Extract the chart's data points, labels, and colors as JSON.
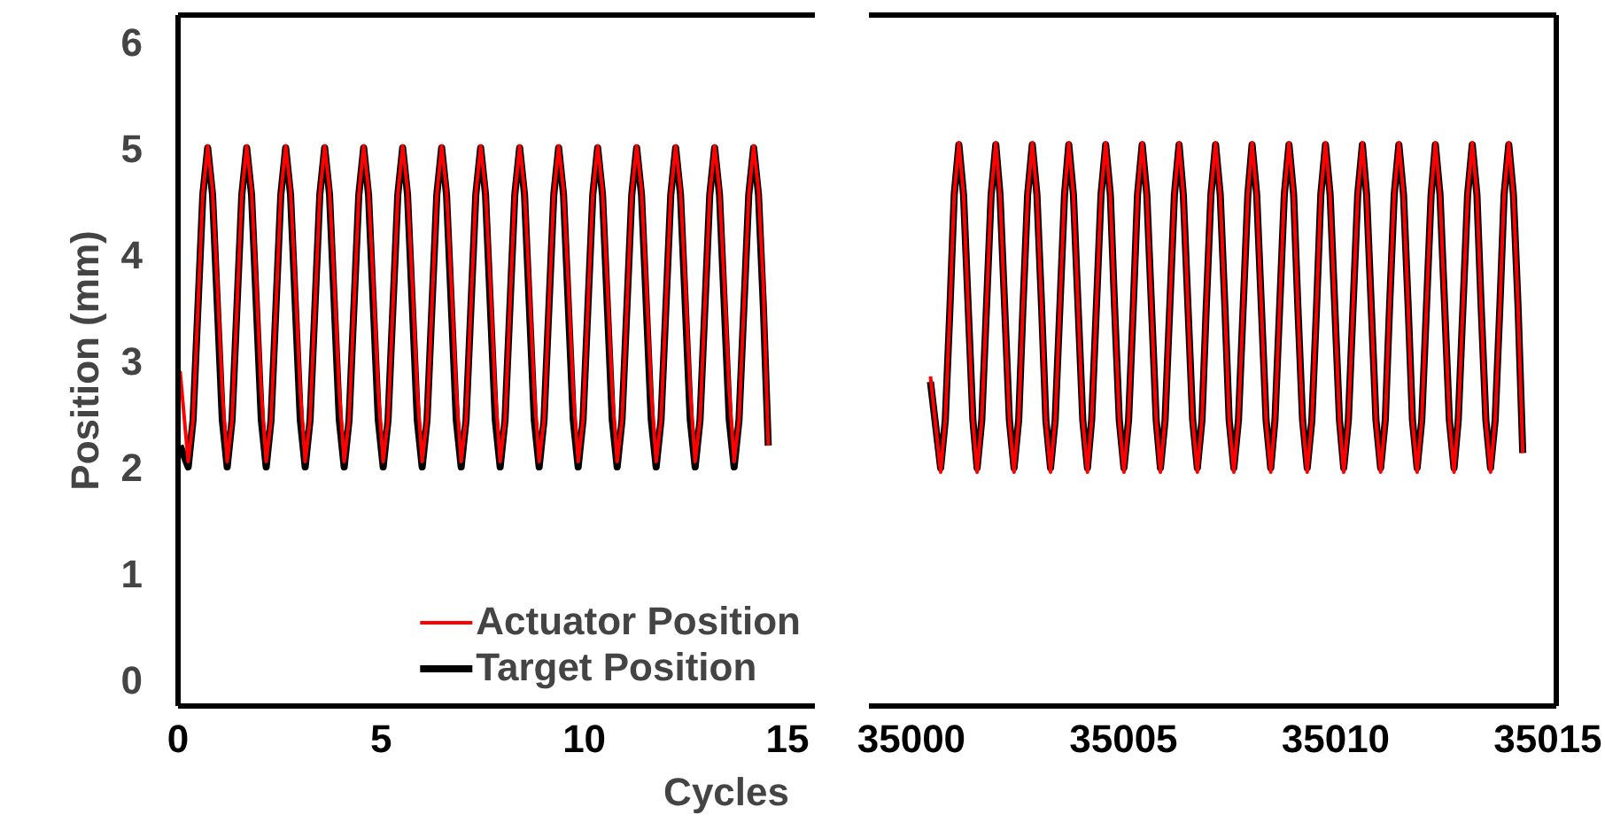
{
  "chart_data": [
    {
      "type": "line",
      "ylabel": "Position (mm)",
      "xlabel": "Cycles",
      "legend": "bottom right",
      "xlim": [
        0,
        15.7
      ],
      "xticks": [
        0,
        5,
        10,
        15
      ],
      "ylim": [
        -0.25,
        6.25
      ],
      "yticks": [
        0,
        1,
        2,
        3,
        4,
        5,
        6
      ],
      "x": [
        0.05,
        0.25,
        0.37,
        0.49,
        0.61,
        0.73,
        0.85,
        0.97,
        1.09,
        1.21,
        1.33,
        1.45,
        1.57,
        1.69,
        1.81,
        1.93,
        2.05,
        2.17,
        2.29,
        2.41,
        2.53,
        2.65,
        2.77,
        2.89,
        3.01,
        3.13,
        3.25,
        3.37,
        3.49,
        3.61,
        3.73,
        3.85,
        3.97,
        4.09,
        4.21,
        4.33,
        4.45,
        4.57,
        4.69,
        4.81,
        4.93,
        5.05,
        5.17,
        5.29,
        5.41,
        5.53,
        5.65,
        5.77,
        5.89,
        6.01,
        6.13,
        6.25,
        6.37,
        6.49,
        6.61,
        6.73,
        6.85,
        6.97,
        7.09,
        7.21,
        7.33,
        7.45,
        7.57,
        7.69,
        7.81,
        7.93,
        8.05,
        8.17,
        8.29,
        8.41,
        8.53,
        8.65,
        8.77,
        8.89,
        9.01,
        9.13,
        9.25,
        9.37,
        9.49,
        9.61,
        9.73,
        9.85,
        9.97,
        10.09,
        10.21,
        10.33,
        10.45,
        10.57,
        10.69,
        10.81,
        10.93,
        11.05,
        11.17,
        11.29,
        11.41,
        11.53,
        11.65,
        11.77,
        11.89,
        12.01,
        12.13,
        12.25,
        12.37,
        12.49,
        12.61,
        12.73,
        12.85,
        12.97,
        13.09,
        13.21,
        13.33,
        13.45,
        13.57,
        13.69,
        13.81,
        13.93,
        14.05,
        14.17,
        14.29,
        14.41,
        14.53
      ],
      "series": [
        {
          "name": "Actuator Position",
          "color": "#ff0000",
          "values": [
            2.9,
            2.05,
            2.44,
            3.5,
            4.56,
            5.02,
            4.6,
            3.7,
            2.7,
            2.05,
            2.44,
            3.5,
            4.56,
            5.02,
            4.6,
            3.7,
            2.7,
            2.05,
            2.44,
            3.5,
            4.56,
            5.02,
            4.6,
            3.7,
            2.7,
            2.05,
            2.44,
            3.5,
            4.56,
            5.02,
            4.6,
            3.7,
            2.7,
            2.05,
            2.44,
            3.5,
            4.56,
            5.02,
            4.6,
            3.7,
            2.7,
            2.05,
            2.44,
            3.5,
            4.56,
            5.02,
            4.6,
            3.7,
            2.7,
            2.05,
            2.44,
            3.5,
            4.56,
            5.02,
            4.6,
            3.7,
            2.7,
            2.05,
            2.44,
            3.5,
            4.56,
            5.02,
            4.6,
            3.7,
            2.7,
            2.05,
            2.44,
            3.5,
            4.56,
            5.02,
            4.6,
            3.7,
            2.7,
            2.05,
            2.44,
            3.5,
            4.56,
            5.02,
            4.6,
            3.7,
            2.7,
            2.05,
            2.44,
            3.5,
            4.56,
            5.02,
            4.6,
            3.7,
            2.7,
            2.05,
            2.44,
            3.5,
            4.56,
            5.02,
            4.6,
            3.7,
            2.7,
            2.05,
            2.44,
            3.5,
            4.56,
            5.02,
            4.6,
            3.7,
            2.7,
            2.05,
            2.44,
            3.5,
            4.56,
            5.02,
            4.6,
            3.7,
            2.7,
            2.05,
            2.44,
            3.5,
            4.56,
            5.02,
            4.6,
            3.7,
            2.2
          ]
        },
        {
          "name": "Target Position",
          "color": "#000000",
          "values": [
            2.2,
            2,
            2.44,
            3.5,
            4.56,
            5,
            4.56,
            3.5,
            2.44,
            2,
            2.44,
            3.5,
            4.56,
            5,
            4.56,
            3.5,
            2.44,
            2,
            2.44,
            3.5,
            4.56,
            5,
            4.56,
            3.5,
            2.44,
            2,
            2.44,
            3.5,
            4.56,
            5,
            4.56,
            3.5,
            2.44,
            2,
            2.44,
            3.5,
            4.56,
            5,
            4.56,
            3.5,
            2.44,
            2,
            2.44,
            3.5,
            4.56,
            5,
            4.56,
            3.5,
            2.44,
            2,
            2.44,
            3.5,
            4.56,
            5,
            4.56,
            3.5,
            2.44,
            2,
            2.44,
            3.5,
            4.56,
            5,
            4.56,
            3.5,
            2.44,
            2,
            2.44,
            3.5,
            4.56,
            5,
            4.56,
            3.5,
            2.44,
            2,
            2.44,
            3.5,
            4.56,
            5,
            4.56,
            3.5,
            2.44,
            2,
            2.44,
            3.5,
            4.56,
            5,
            4.56,
            3.5,
            2.44,
            2,
            2.44,
            3.5,
            4.56,
            5,
            4.56,
            3.5,
            2.44,
            2,
            2.44,
            3.5,
            4.56,
            5,
            4.56,
            3.5,
            2.44,
            2,
            2.44,
            3.5,
            4.56,
            5,
            4.56,
            3.5,
            2.44,
            2,
            2.44,
            3.5,
            4.56,
            5,
            4.56,
            3.5,
            2.2
          ]
        }
      ]
    },
    {
      "type": "line",
      "tick_labels": "x",
      "xlim": [
        34999,
        35015.2
      ],
      "xticks": [
        35000,
        35005,
        35010,
        35015
      ],
      "ylim": [
        -0.25,
        6.25
      ],
      "yticks": [
        0,
        1,
        2,
        3,
        4,
        5,
        6
      ],
      "x": [
        35000.45,
        35000.69,
        35000.8,
        35000.91,
        35001.01,
        35001.12,
        35001.23,
        35001.34,
        35001.45,
        35001.55,
        35001.66,
        35001.77,
        35001.88,
        35001.99,
        35002.09,
        35002.2,
        35002.31,
        35002.42,
        35002.53,
        35002.63,
        35002.74,
        35002.85,
        35002.96,
        35003.07,
        35003.17,
        35003.28,
        35003.39,
        35003.5,
        35003.61,
        35003.71,
        35003.82,
        35003.93,
        35004.04,
        35004.15,
        35004.25,
        35004.36,
        35004.47,
        35004.58,
        35004.69,
        35004.79,
        35004.9,
        35005.01,
        35005.12,
        35005.23,
        35005.33,
        35005.44,
        35005.55,
        35005.66,
        35005.77,
        35005.87,
        35005.98,
        35006.09,
        35006.2,
        35006.31,
        35006.41,
        35006.52,
        35006.63,
        35006.74,
        35006.85,
        35006.95,
        35007.06,
        35007.17,
        35007.28,
        35007.39,
        35007.49,
        35007.6,
        35007.71,
        35007.82,
        35007.93,
        35008.03,
        35008.14,
        35008.25,
        35008.36,
        35008.47,
        35008.57,
        35008.68,
        35008.79,
        35008.9,
        35009.01,
        35009.11,
        35009.22,
        35009.33,
        35009.44,
        35009.55,
        35009.65,
        35009.76,
        35009.87,
        35009.98,
        35010.09,
        35010.19,
        35010.3,
        35010.41,
        35010.52,
        35010.63,
        35010.73,
        35010.84,
        35010.95,
        35011.06,
        35011.17,
        35011.27,
        35011.38,
        35011.49,
        35011.6,
        35011.71,
        35011.81,
        35011.92,
        35012.03,
        35012.14,
        35012.25,
        35012.35,
        35012.46,
        35012.57,
        35012.68,
        35012.79,
        35012.89,
        35013,
        35013.11,
        35013.22,
        35013.33,
        35013.43,
        35013.54,
        35013.65,
        35013.76,
        35013.87,
        35013.97,
        35014.08,
        35014.19,
        35014.3,
        35014.41
      ],
      "series": [
        {
          "color": "#ff0000",
          "values": [
            2.85,
            1.95,
            2.44,
            3.5,
            4.56,
            5.05,
            4.56,
            3.5,
            2.44,
            1.95,
            2.44,
            3.5,
            4.56,
            5.05,
            4.56,
            3.5,
            2.44,
            1.95,
            2.44,
            3.5,
            4.56,
            5.05,
            4.56,
            3.5,
            2.44,
            1.95,
            2.44,
            3.5,
            4.56,
            5.05,
            4.56,
            3.5,
            2.44,
            1.95,
            2.44,
            3.5,
            4.56,
            5.05,
            4.56,
            3.5,
            2.44,
            1.95,
            2.44,
            3.5,
            4.56,
            5.05,
            4.56,
            3.5,
            2.44,
            1.95,
            2.44,
            3.5,
            4.56,
            5.05,
            4.56,
            3.5,
            2.44,
            1.95,
            2.44,
            3.5,
            4.56,
            5.05,
            4.56,
            3.5,
            2.44,
            1.95,
            2.44,
            3.5,
            4.56,
            5.05,
            4.56,
            3.5,
            2.44,
            1.95,
            2.44,
            3.5,
            4.56,
            5.05,
            4.56,
            3.5,
            2.44,
            1.95,
            2.44,
            3.5,
            4.56,
            5.05,
            4.56,
            3.5,
            2.44,
            1.95,
            2.44,
            3.5,
            4.56,
            5.05,
            4.56,
            3.5,
            2.44,
            1.95,
            2.44,
            3.5,
            4.56,
            5.05,
            4.56,
            3.5,
            2.44,
            1.95,
            2.44,
            3.5,
            4.56,
            5.05,
            4.56,
            3.5,
            2.44,
            1.95,
            2.44,
            3.5,
            4.56,
            5.05,
            4.56,
            3.5,
            2.44,
            1.95,
            2.44,
            3.5,
            4.56,
            5.05,
            4.56,
            3.5,
            2.13
          ]
        },
        {
          "color": "#000000",
          "values": [
            2.8,
            1.99,
            2.44,
            3.5,
            4.56,
            5.03,
            4.56,
            3.5,
            2.44,
            1.99,
            2.44,
            3.5,
            4.56,
            5.03,
            4.56,
            3.5,
            2.44,
            1.99,
            2.44,
            3.5,
            4.56,
            5.03,
            4.56,
            3.5,
            2.44,
            1.99,
            2.44,
            3.5,
            4.56,
            5.03,
            4.56,
            3.5,
            2.44,
            1.99,
            2.44,
            3.5,
            4.56,
            5.03,
            4.56,
            3.5,
            2.44,
            1.99,
            2.44,
            3.5,
            4.56,
            5.03,
            4.56,
            3.5,
            2.44,
            1.99,
            2.44,
            3.5,
            4.56,
            5.03,
            4.56,
            3.5,
            2.44,
            1.99,
            2.44,
            3.5,
            4.56,
            5.03,
            4.56,
            3.5,
            2.44,
            1.99,
            2.44,
            3.5,
            4.56,
            5.03,
            4.56,
            3.5,
            2.44,
            1.99,
            2.44,
            3.5,
            4.56,
            5.03,
            4.56,
            3.5,
            2.44,
            1.99,
            2.44,
            3.5,
            4.56,
            5.03,
            4.56,
            3.5,
            2.44,
            1.99,
            2.44,
            3.5,
            4.56,
            5.03,
            4.56,
            3.5,
            2.44,
            1.99,
            2.44,
            3.5,
            4.56,
            5.03,
            4.56,
            3.5,
            2.44,
            1.99,
            2.44,
            3.5,
            4.56,
            5.03,
            4.56,
            3.5,
            2.44,
            1.99,
            2.44,
            3.5,
            4.56,
            5.03,
            4.56,
            3.5,
            2.44,
            1.99,
            2.44,
            3.5,
            4.56,
            5.03,
            4.56,
            3.5,
            2.13
          ]
        }
      ]
    }
  ]
}
